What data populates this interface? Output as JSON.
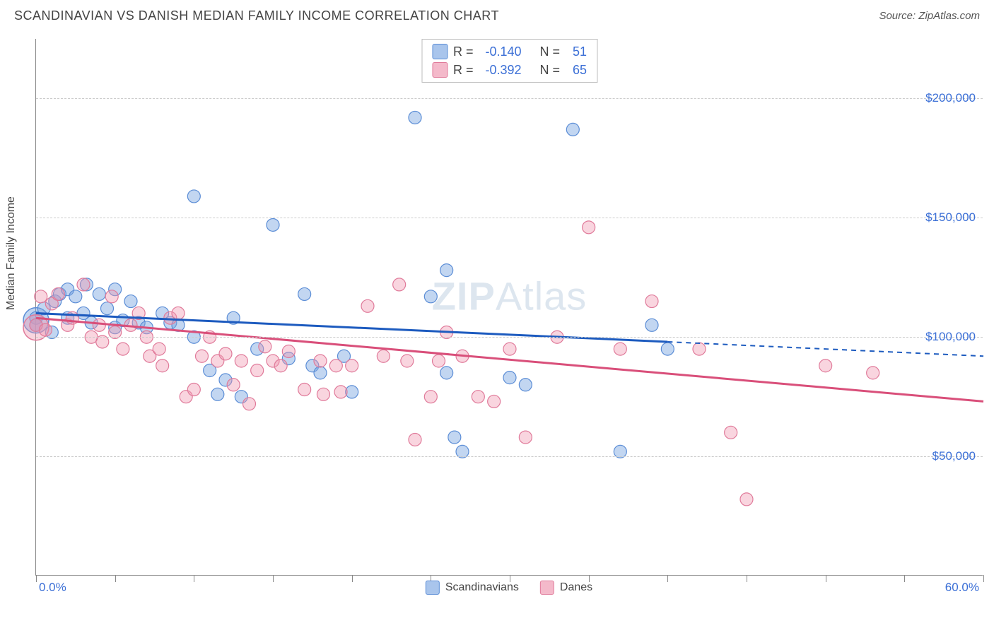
{
  "title": "SCANDINAVIAN VS DANISH MEDIAN FAMILY INCOME CORRELATION CHART",
  "source": "Source: ZipAtlas.com",
  "watermark": {
    "bold": "ZIP",
    "rest": "Atlas"
  },
  "y_axis": {
    "label": "Median Family Income"
  },
  "x_axis": {
    "min_label": "0.0%",
    "max_label": "60.0%"
  },
  "chart": {
    "type": "scatter",
    "x_domain": [
      0,
      60
    ],
    "y_domain": [
      0,
      225000
    ],
    "y_ticks": [
      {
        "value": 50000,
        "label": "$50,000"
      },
      {
        "value": 100000,
        "label": "$100,000"
      },
      {
        "value": 150000,
        "label": "$150,000"
      },
      {
        "value": 200000,
        "label": "$200,000"
      }
    ],
    "x_tick_values": [
      0,
      5,
      10,
      15,
      20,
      25,
      30,
      35,
      40,
      45,
      50,
      55,
      60
    ],
    "background_color": "#ffffff",
    "grid_color": "#cccccc",
    "axis_color": "#888888",
    "tick_label_color": "#3b6fd6",
    "point_radius": 9,
    "big_point_radius": 18,
    "series": [
      {
        "name": "Scandinavians",
        "fill": "rgba(120,165,225,0.45)",
        "stroke": "#5b8dd6",
        "swatch_fill": "#a9c5ec",
        "swatch_stroke": "#5b8dd6",
        "R": "-0.140",
        "N": "51",
        "trend": {
          "color": "#1d5bbf",
          "width": 3,
          "solid": {
            "x1": 0,
            "y1": 110000,
            "x2": 40,
            "y2": 98000
          },
          "dashed": {
            "x1": 40,
            "y1": 98000,
            "x2": 60,
            "y2": 92000
          }
        },
        "points": [
          [
            0,
            108000
          ],
          [
            0,
            105000
          ],
          [
            0.5,
            112000
          ],
          [
            1,
            102000
          ],
          [
            1.2,
            115000
          ],
          [
            1.5,
            118000
          ],
          [
            2,
            108000
          ],
          [
            2,
            120000
          ],
          [
            2.5,
            117000
          ],
          [
            3,
            110000
          ],
          [
            3.2,
            122000
          ],
          [
            3.5,
            106000
          ],
          [
            4,
            118000
          ],
          [
            4.5,
            112000
          ],
          [
            5,
            120000
          ],
          [
            5,
            104000
          ],
          [
            5.5,
            107000
          ],
          [
            6,
            115000
          ],
          [
            6.5,
            106000
          ],
          [
            7,
            104000
          ],
          [
            8,
            110000
          ],
          [
            8.5,
            106000
          ],
          [
            9,
            105000
          ],
          [
            10,
            159000
          ],
          [
            10,
            100000
          ],
          [
            11,
            86000
          ],
          [
            11.5,
            76000
          ],
          [
            12,
            82000
          ],
          [
            12.5,
            108000
          ],
          [
            13,
            75000
          ],
          [
            14,
            95000
          ],
          [
            15,
            147000
          ],
          [
            16,
            91000
          ],
          [
            17,
            118000
          ],
          [
            17.5,
            88000
          ],
          [
            18,
            85000
          ],
          [
            19.5,
            92000
          ],
          [
            20,
            77000
          ],
          [
            24,
            192000
          ],
          [
            25,
            117000
          ],
          [
            26,
            128000
          ],
          [
            26,
            85000
          ],
          [
            26.5,
            58000
          ],
          [
            27,
            52000
          ],
          [
            30,
            83000
          ],
          [
            31,
            80000
          ],
          [
            34,
            187000
          ],
          [
            37,
            52000
          ],
          [
            39,
            105000
          ],
          [
            40,
            95000
          ]
        ],
        "big_point": [
          0,
          107000
        ]
      },
      {
        "name": "Danes",
        "fill": "rgba(240,150,175,0.40)",
        "stroke": "#e07a9a",
        "swatch_fill": "#f4b9ca",
        "swatch_stroke": "#e07a9a",
        "R": "-0.392",
        "N": "65",
        "trend": {
          "color": "#d94f7a",
          "width": 3,
          "solid": {
            "x1": 0,
            "y1": 108000,
            "x2": 60,
            "y2": 73000
          },
          "dashed": null
        },
        "points": [
          [
            0,
            105000
          ],
          [
            0.3,
            117000
          ],
          [
            0.6,
            103000
          ],
          [
            1,
            114000
          ],
          [
            1.4,
            118000
          ],
          [
            2,
            105000
          ],
          [
            2.3,
            108000
          ],
          [
            3,
            122000
          ],
          [
            3.5,
            100000
          ],
          [
            4,
            105000
          ],
          [
            4.2,
            98000
          ],
          [
            4.8,
            117000
          ],
          [
            5,
            102000
          ],
          [
            5.5,
            95000
          ],
          [
            6,
            105000
          ],
          [
            6.5,
            110000
          ],
          [
            7,
            100000
          ],
          [
            7.2,
            92000
          ],
          [
            7.8,
            95000
          ],
          [
            8,
            88000
          ],
          [
            8.5,
            108000
          ],
          [
            9,
            110000
          ],
          [
            9.5,
            75000
          ],
          [
            10,
            78000
          ],
          [
            10.5,
            92000
          ],
          [
            11,
            100000
          ],
          [
            11.5,
            90000
          ],
          [
            12,
            93000
          ],
          [
            12.5,
            80000
          ],
          [
            13,
            90000
          ],
          [
            13.5,
            72000
          ],
          [
            14,
            86000
          ],
          [
            14.5,
            96000
          ],
          [
            15,
            90000
          ],
          [
            15.5,
            88000
          ],
          [
            16,
            94000
          ],
          [
            17,
            78000
          ],
          [
            18,
            90000
          ],
          [
            18.2,
            76000
          ],
          [
            19,
            88000
          ],
          [
            19.3,
            77000
          ],
          [
            20,
            88000
          ],
          [
            21,
            113000
          ],
          [
            22,
            92000
          ],
          [
            23,
            122000
          ],
          [
            23.5,
            90000
          ],
          [
            24,
            57000
          ],
          [
            25,
            75000
          ],
          [
            25.5,
            90000
          ],
          [
            26,
            102000
          ],
          [
            27,
            92000
          ],
          [
            28,
            75000
          ],
          [
            29,
            73000
          ],
          [
            30,
            95000
          ],
          [
            31,
            58000
          ],
          [
            33,
            100000
          ],
          [
            35,
            146000
          ],
          [
            37,
            95000
          ],
          [
            39,
            115000
          ],
          [
            42,
            95000
          ],
          [
            44,
            60000
          ],
          [
            45,
            32000
          ],
          [
            50,
            88000
          ],
          [
            53,
            85000
          ]
        ],
        "big_point": [
          0,
          104000
        ]
      }
    ]
  },
  "stats_labels": {
    "r": "R =",
    "n": "N ="
  },
  "bottom_legend": [
    {
      "label": "Scandinavians",
      "series_idx": 0
    },
    {
      "label": "Danes",
      "series_idx": 1
    }
  ]
}
